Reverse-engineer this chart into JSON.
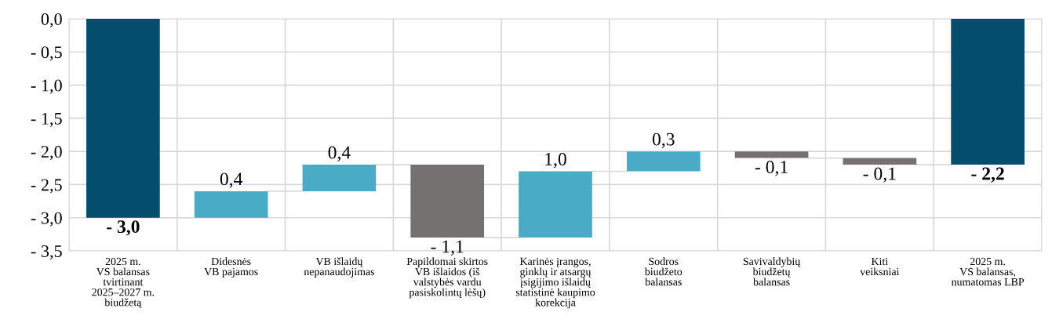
{
  "chart_data": {
    "type": "bar",
    "categories": [
      "2025 m.\nVS balansas\ntvirtinant\n2025–2027 m.\nbiudžetą",
      "Didesnės\nVB pajamos",
      "VB išlaidų\nnepanaudojimas",
      "Papildomai skirtos\nVB išlaidos (iš\nvalstybės vardu\npasiskolintų lėšų)",
      "Karinės įrangos,\nginklų ir atsargų\nįsigijimo išlaidų\nstatistinė kaupimo\nkorekcija",
      "Sodros\nbiudžeto\nbalansas",
      "Savivaldybių\nbiudžetų\nbalansas",
      "Kiti\nveiksniai",
      "2025 m.\nVS balansas,\nnumatomas LBP"
    ],
    "values": [
      -3.0,
      0.4,
      0.4,
      -1.1,
      1.0,
      0.3,
      -0.1,
      -0.1,
      -2.2
    ],
    "base": [
      0,
      -3.0,
      -2.6,
      -2.2,
      -3.3,
      -2.3,
      -2.0,
      -2.1,
      0
    ],
    "colors": [
      "#054d6d",
      "#4aabc6",
      "#4aabc6",
      "#767171",
      "#4aabc6",
      "#4aabc6",
      "#767171",
      "#767171",
      "#054d6d"
    ],
    "value_labels": [
      "- 3,0",
      "0,4",
      "0,4",
      "- 1,1",
      "1,0",
      "0,3",
      "- 0,1",
      "- 0,1",
      "- 2,2"
    ],
    "ylim": [
      -3.5,
      0
    ],
    "yticks": [
      {
        "value": 0,
        "label": "0,0"
      },
      {
        "value": -0.5,
        "label": "- 0,5"
      },
      {
        "value": -1.0,
        "label": "- 1,0"
      },
      {
        "value": -1.5,
        "label": "- 1,5"
      },
      {
        "value": -2.0,
        "label": "- 2,0"
      },
      {
        "value": -2.5,
        "label": "- 2,5"
      },
      {
        "value": -3.0,
        "label": "- 3,0"
      },
      {
        "value": -3.5,
        "label": "- 3,5"
      }
    ],
    "grid": true
  }
}
